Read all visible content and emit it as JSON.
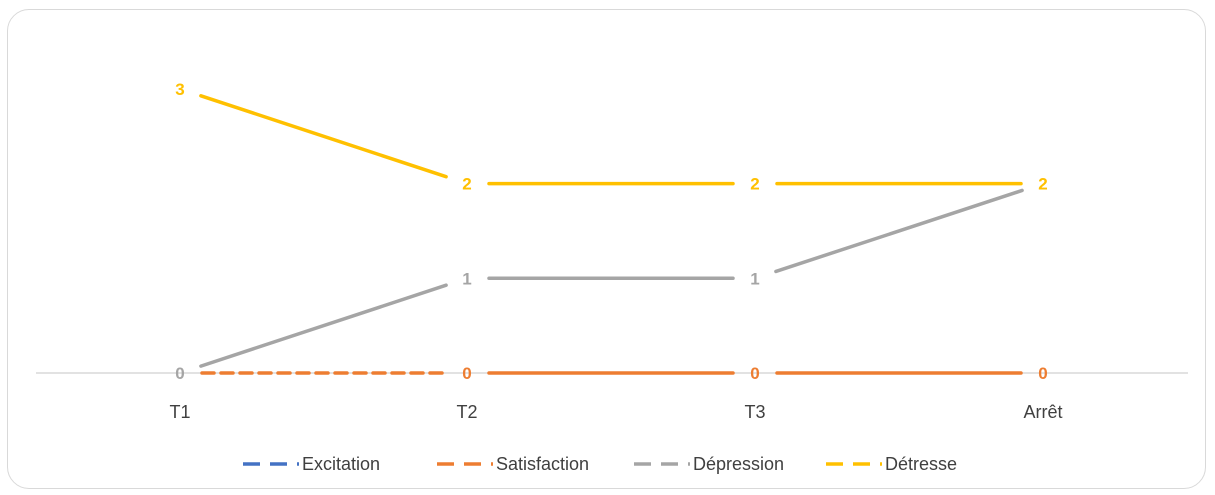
{
  "chart_data": {
    "type": "line",
    "title": "",
    "xlabel": "",
    "ylabel": "",
    "categories": [
      "T1",
      "T2",
      "T3",
      "Arrêt"
    ],
    "ylim": [
      0,
      3.3
    ],
    "grid": false,
    "legend_position": "bottom",
    "series": [
      {
        "name": "Excitation",
        "values": [
          0,
          0,
          0,
          0
        ],
        "color": "#4472c4",
        "show_line": false,
        "dash_segments": [
          true,
          false,
          false
        ]
      },
      {
        "name": "Satisfaction",
        "values": [
          0,
          0,
          0,
          0
        ],
        "color": "#ed7d31",
        "show_line": true,
        "dash_segments": [
          true,
          false,
          false
        ]
      },
      {
        "name": "Dépression",
        "values": [
          0,
          1,
          1,
          2
        ],
        "color": "#a5a5a5",
        "show_line": true,
        "dash_segments": [
          false,
          false,
          false
        ]
      },
      {
        "name": "Détresse",
        "values": [
          3,
          2,
          2,
          2
        ],
        "color": "#ffc000",
        "show_line": true,
        "dash_segments": [
          false,
          false,
          false
        ]
      }
    ],
    "data_labels": [
      {
        "series": "Dépression",
        "values": [
          "0",
          "1",
          "1",
          null
        ],
        "color": "#a5a5a5"
      },
      {
        "series": "Satisfaction",
        "values": [
          null,
          "0",
          "0",
          "0"
        ],
        "color": "#ed7d31"
      },
      {
        "series": "Détresse",
        "values": [
          "3",
          "2",
          "2",
          "2"
        ],
        "color": "#ffc000"
      }
    ]
  }
}
